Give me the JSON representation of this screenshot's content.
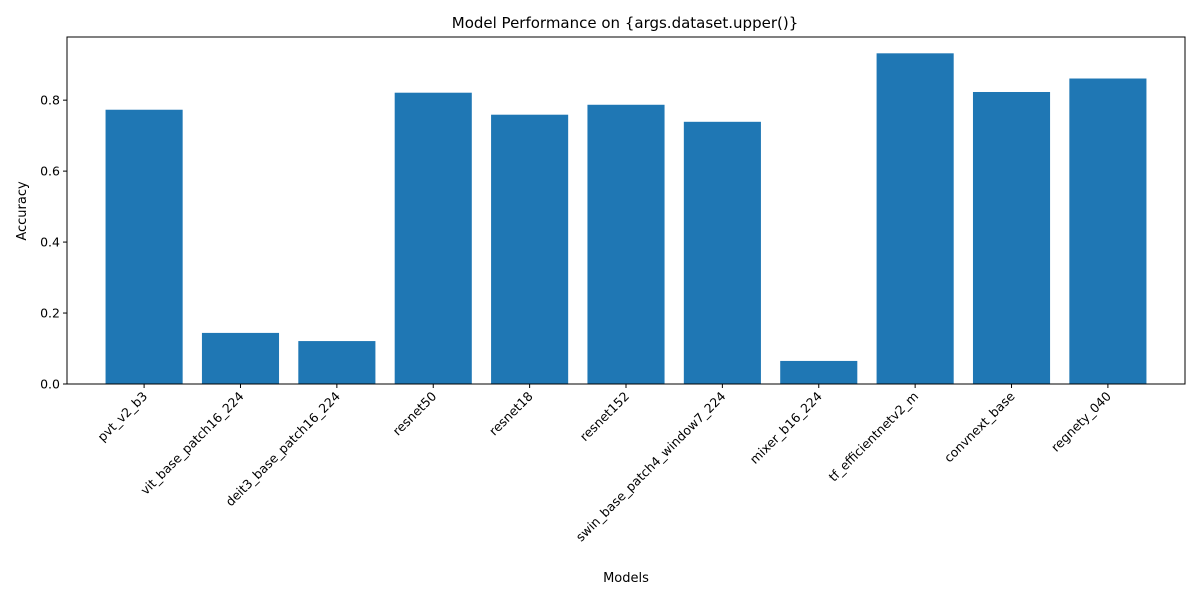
{
  "chart_data": {
    "type": "bar",
    "title": "Model Performance on {args.dataset.upper()}",
    "xlabel": "Models",
    "ylabel": "Accuracy",
    "categories": [
      "pvt_v2_b3",
      "vit_base_patch16_224",
      "deit3_base_patch16_224",
      "resnet50",
      "resnet18",
      "resnet152",
      "swin_base_patch4_window7_224",
      "mixer_b16_224",
      "tf_efficientnetv2_m",
      "convnext_base",
      "regnety_040"
    ],
    "values": [
      0.773,
      0.144,
      0.121,
      0.821,
      0.759,
      0.787,
      0.739,
      0.065,
      0.932,
      0.823,
      0.861
    ],
    "ylim": [
      0,
      0.978
    ],
    "yticks": [
      0.0,
      0.2,
      0.4,
      0.6,
      0.8
    ],
    "ytick_labels": [
      "0.0",
      "0.2",
      "0.4",
      "0.6",
      "0.8"
    ],
    "bar_color": "#1f77b4",
    "grid": false,
    "legend": "none"
  }
}
